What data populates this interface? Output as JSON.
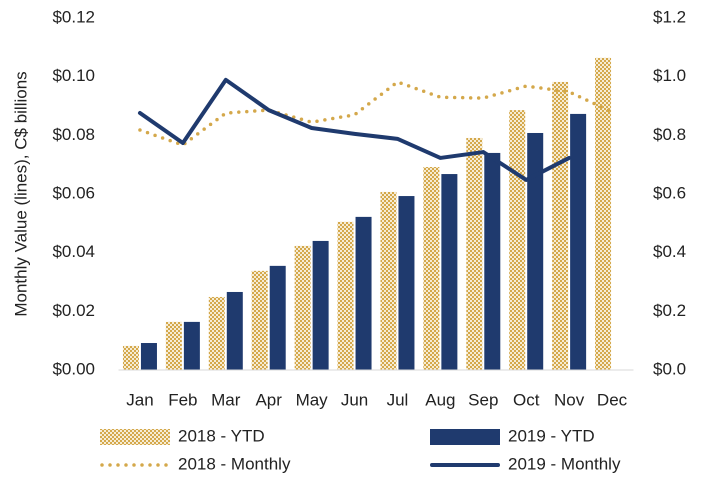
{
  "chart_data": {
    "type": "bar",
    "y_label": "Monthly Value (lines), C$ billions",
    "categories": [
      "Jan",
      "Feb",
      "Mar",
      "Apr",
      "May",
      "Jun",
      "Jul",
      "Aug",
      "Sep",
      "Oct",
      "Nov",
      "Dec"
    ],
    "series": [
      {
        "name": "2018 - YTD",
        "type": "bar",
        "axis": "y2",
        "color": "#d4a84b",
        "values": [
          0.082,
          0.164,
          0.249,
          0.338,
          0.423,
          0.505,
          0.607,
          0.692,
          0.791,
          0.886,
          0.982,
          1.064
        ]
      },
      {
        "name": "2019 - YTD",
        "type": "bar",
        "axis": "y2",
        "color": "#1f3a6e",
        "values": [
          0.092,
          0.164,
          0.266,
          0.355,
          0.44,
          0.522,
          0.593,
          0.668,
          0.74,
          0.808,
          0.873,
          null
        ]
      },
      {
        "name": "2018 - Monthly",
        "type": "line",
        "axis": "y",
        "color": "#d4a84b",
        "dash": "dotted",
        "values": [
          0.0818,
          0.0767,
          0.0876,
          0.0886,
          0.0845,
          0.087,
          0.0982,
          0.093,
          0.0927,
          0.0968,
          0.0948,
          0.088
        ]
      },
      {
        "name": "2019 - Monthly",
        "type": "line",
        "axis": "y",
        "color": "#1f3a6e",
        "values": [
          0.0876,
          0.0774,
          0.0989,
          0.0886,
          0.0825,
          0.0805,
          0.0788,
          0.0723,
          0.0743,
          0.0648,
          0.0723,
          null
        ]
      }
    ],
    "ylim": [
      0,
      0.12
    ],
    "yticks": [
      {
        "value": 0,
        "label": "$0.00"
      },
      {
        "value": 0.02,
        "label": "$0.02"
      },
      {
        "value": 0.04,
        "label": "$0.04"
      },
      {
        "value": 0.06,
        "label": "$0.06"
      },
      {
        "value": 0.08,
        "label": "$0.08"
      },
      {
        "value": 0.1,
        "label": "$0.10"
      },
      {
        "value": 0.12,
        "label": "$0.12"
      }
    ],
    "y2lim": [
      0,
      1.2
    ],
    "y2ticks": [
      {
        "value": 0,
        "label": "$0.0"
      },
      {
        "value": 0.2,
        "label": "$0.2"
      },
      {
        "value": 0.4,
        "label": "$0.4"
      },
      {
        "value": 0.6,
        "label": "$0.6"
      },
      {
        "value": 0.8,
        "label": "$0.8"
      },
      {
        "value": 1,
        "label": "$1.0"
      },
      {
        "value": 1.2,
        "label": "$1.2"
      }
    ],
    "grid": false,
    "legend": "bottom"
  }
}
